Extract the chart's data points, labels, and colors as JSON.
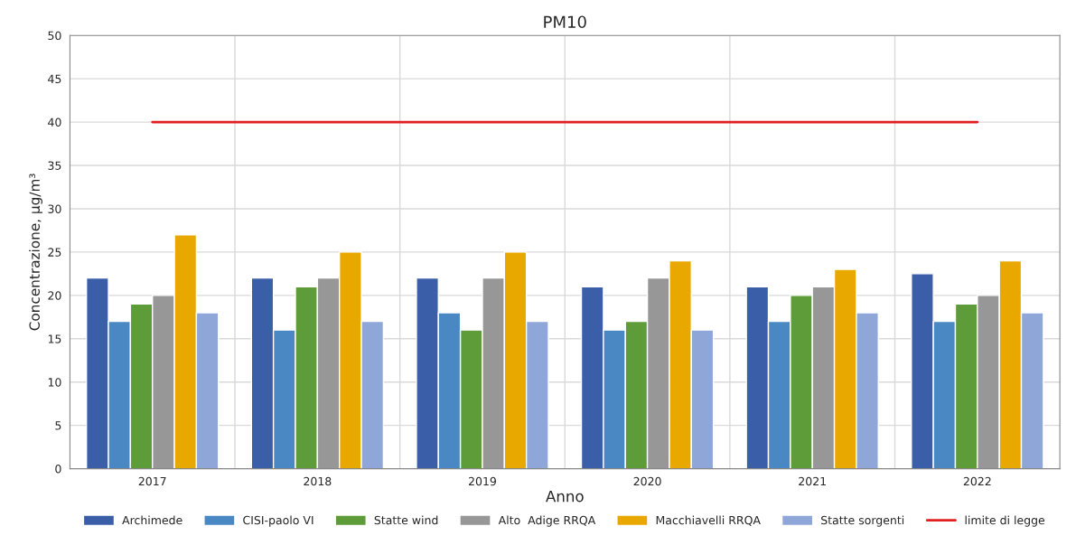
{
  "chart_data": {
    "type": "bar",
    "title": "PM10",
    "xlabel": "Anno",
    "ylabel": "Concentrazione, µg/m³",
    "categories": [
      "2017",
      "2018",
      "2019",
      "2020",
      "2021",
      "2022"
    ],
    "series": [
      {
        "name": "Archimede",
        "color": "#3a5fa8",
        "values": [
          22,
          22,
          22,
          21,
          21,
          22.5
        ]
      },
      {
        "name": "CISI-paolo VI",
        "color": "#4a88c4",
        "values": [
          17,
          16,
          18,
          16,
          17,
          17
        ]
      },
      {
        "name": "Statte wind",
        "color": "#5e9c3a",
        "values": [
          19,
          21,
          16,
          17,
          20,
          19
        ]
      },
      {
        "name": "Alto  Adige RRQA",
        "color": "#979797",
        "values": [
          20,
          22,
          22,
          22,
          21,
          20
        ]
      },
      {
        "name": "Macchiavelli RRQA",
        "color": "#e8a800",
        "values": [
          27,
          25,
          25,
          24,
          23,
          24
        ]
      },
      {
        "name": "Statte sorgenti",
        "color": "#8ea6d8",
        "values": [
          18,
          17,
          17,
          16,
          18,
          18
        ]
      },
      {
        "name": "limite di legge",
        "color": "#e02020",
        "type": "line",
        "values": [
          40,
          40,
          40,
          40,
          40,
          40
        ]
      }
    ],
    "ylim": [
      0,
      50
    ],
    "yticks": [
      0,
      5,
      10,
      15,
      20,
      25,
      30,
      35,
      40,
      45,
      50
    ],
    "grid": true,
    "legend": "bottom",
    "marker": "none",
    "line_style": "solid"
  }
}
